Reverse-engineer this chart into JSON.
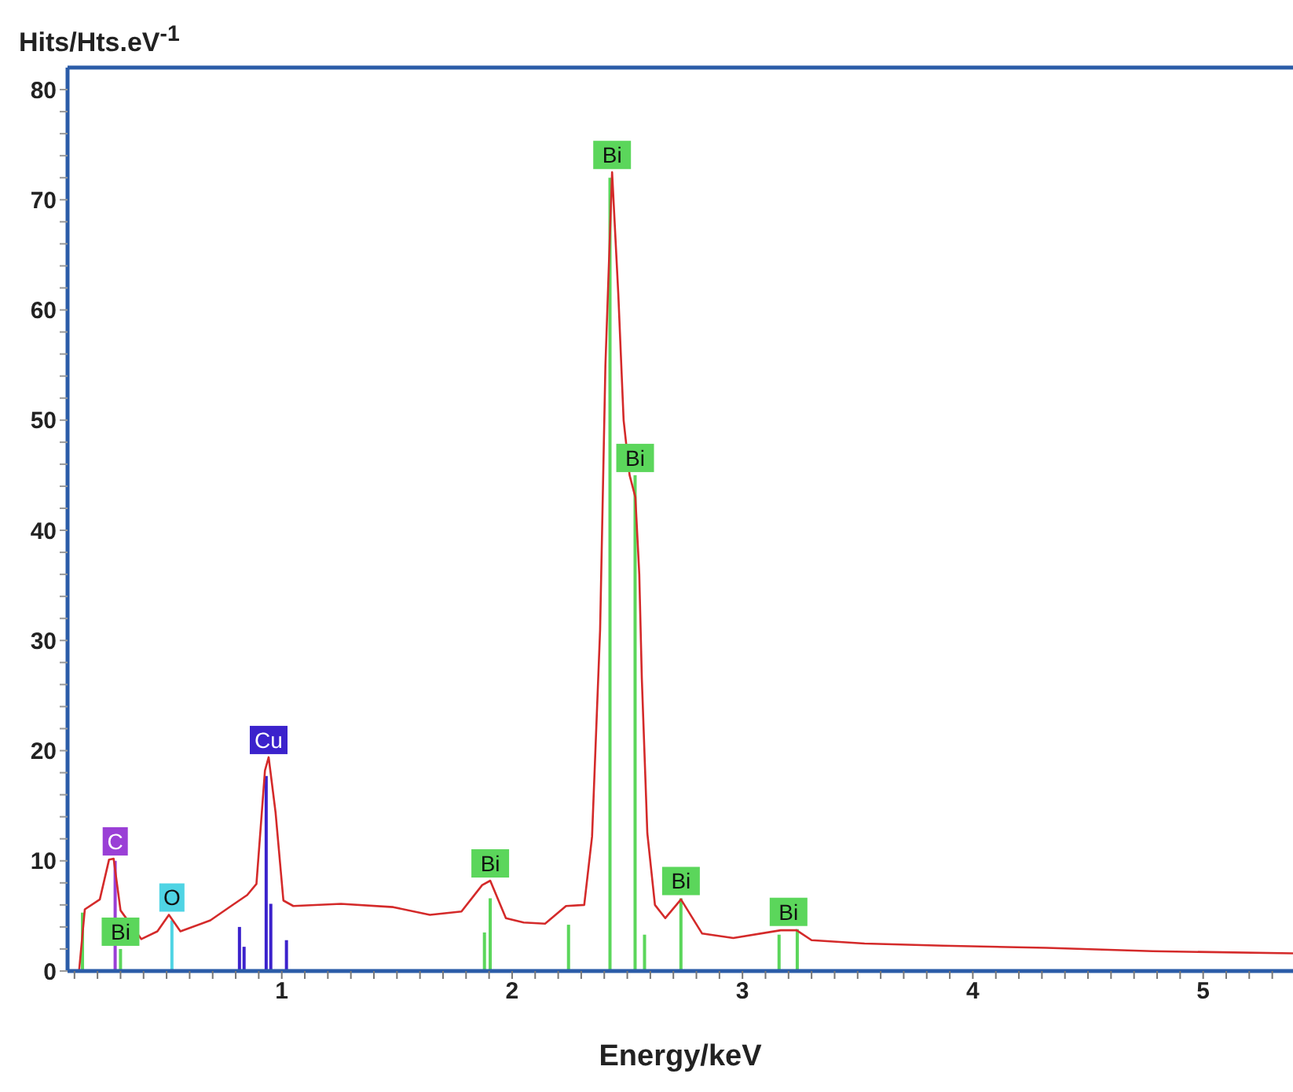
{
  "chart_data": {
    "type": "line",
    "xlabel": "Energy/keV",
    "ylabel": "Hits/Hts.eV$^{-1}$",
    "xlim": [
      0.07,
      5.39
    ],
    "ylim": [
      0,
      82
    ],
    "xticks": [
      {
        "value": 0.1,
        "label": null
      },
      {
        "value": 0.2,
        "label": null
      },
      {
        "value": 0.3,
        "label": null
      },
      {
        "value": 0.4,
        "label": null
      },
      {
        "value": 0.5,
        "label": null
      },
      {
        "value": 0.6,
        "label": null
      },
      {
        "value": 0.7,
        "label": null
      },
      {
        "value": 0.8,
        "label": null
      },
      {
        "value": 0.9,
        "label": null
      },
      1,
      {
        "value": 1.1,
        "label": null
      },
      {
        "value": 1.2,
        "label": null
      },
      {
        "value": 1.3,
        "label": null
      },
      {
        "value": 1.4,
        "label": null
      },
      {
        "value": 1.5,
        "label": null
      },
      {
        "value": 1.6,
        "label": null
      },
      {
        "value": 1.7,
        "label": null
      },
      {
        "value": 1.8,
        "label": null
      },
      {
        "value": 1.9,
        "label": null
      },
      2,
      {
        "value": 2.1,
        "label": null
      },
      {
        "value": 2.2,
        "label": null
      },
      {
        "value": 2.3,
        "label": null
      },
      {
        "value": 2.4,
        "label": null
      },
      {
        "value": 2.5,
        "label": null
      },
      {
        "value": 2.6,
        "label": null
      },
      {
        "value": 2.7,
        "label": null
      },
      {
        "value": 2.8,
        "label": null
      },
      {
        "value": 2.9,
        "label": null
      },
      3,
      {
        "value": 3.1,
        "label": null
      },
      {
        "value": 3.2,
        "label": null
      },
      {
        "value": 3.3,
        "label": null
      },
      {
        "value": 3.4,
        "label": null
      },
      {
        "value": 3.5,
        "label": null
      },
      {
        "value": 3.6,
        "label": null
      },
      {
        "value": 3.7,
        "label": null
      },
      {
        "value": 3.8,
        "label": null
      },
      {
        "value": 3.9,
        "label": null
      },
      4,
      {
        "value": 4.1,
        "label": null
      },
      {
        "value": 4.2,
        "label": null
      },
      {
        "value": 4.3,
        "label": null
      },
      {
        "value": 4.4,
        "label": null
      },
      {
        "value": 4.5,
        "label": null
      },
      {
        "value": 4.6,
        "label": null
      },
      {
        "value": 4.7,
        "label": null
      },
      {
        "value": 4.8,
        "label": null
      },
      {
        "value": 4.9,
        "label": null
      },
      5,
      {
        "value": 5.1,
        "label": null
      },
      {
        "value": 5.2,
        "label": null
      },
      {
        "value": 5.3,
        "label": null
      }
    ],
    "yticks": [
      0,
      {
        "value": 2,
        "label": null
      },
      {
        "value": 4,
        "label": null
      },
      {
        "value": 6,
        "label": null
      },
      {
        "value": 8,
        "label": null
      },
      10,
      {
        "value": 12,
        "label": null
      },
      {
        "value": 14,
        "label": null
      },
      {
        "value": 16,
        "label": null
      },
      {
        "value": 18,
        "label": null
      },
      20,
      {
        "value": 22,
        "label": null
      },
      {
        "value": 24,
        "label": null
      },
      {
        "value": 26,
        "label": null
      },
      {
        "value": 28,
        "label": null
      },
      30,
      {
        "value": 32,
        "label": null
      },
      {
        "value": 34,
        "label": null
      },
      {
        "value": 36,
        "label": null
      },
      {
        "value": 38,
        "label": null
      },
      40,
      {
        "value": 42,
        "label": null
      },
      {
        "value": 44,
        "label": null
      },
      {
        "value": 46,
        "label": null
      },
      {
        "value": 48,
        "label": null
      },
      50,
      {
        "value": 52,
        "label": null
      },
      {
        "value": 54,
        "label": null
      },
      {
        "value": 56,
        "label": null
      },
      {
        "value": 58,
        "label": null
      },
      60,
      {
        "value": 62,
        "label": null
      },
      {
        "value": 64,
        "label": null
      },
      {
        "value": 66,
        "label": null
      },
      {
        "value": 68,
        "label": null
      },
      70,
      {
        "value": 72,
        "label": null
      },
      {
        "value": 74,
        "label": null
      },
      {
        "value": 76,
        "label": null
      },
      {
        "value": 78,
        "label": null
      },
      80
    ],
    "series": [
      {
        "color": "#d42a2a",
        "x": [
          0.12,
          0.145,
          0.21,
          0.25,
          0.27,
          0.3,
          0.39,
          0.46,
          0.51,
          0.56,
          0.69,
          0.78,
          0.85,
          0.89,
          0.927,
          0.943,
          0.973,
          1.007,
          1.05,
          1.257,
          1.484,
          1.643,
          1.78,
          1.87,
          1.905,
          1.973,
          2.05,
          2.143,
          2.234,
          2.313,
          2.347,
          2.382,
          2.405,
          2.434,
          2.461,
          2.484,
          2.51,
          2.535,
          2.552,
          2.563,
          2.587,
          2.62,
          2.665,
          2.733,
          2.825,
          2.96,
          3.166,
          3.235,
          3.3,
          3.53,
          3.87,
          4.32,
          4.78,
          5.39
        ],
        "values": [
          0,
          5.6,
          6.5,
          10.1,
          10.2,
          5.5,
          2.9,
          3.6,
          5.1,
          3.6,
          4.6,
          5.9,
          6.9,
          7.9,
          18.2,
          19.4,
          14.4,
          6.4,
          5.9,
          6.1,
          5.8,
          5.1,
          5.4,
          7.8,
          8.2,
          4.8,
          4.4,
          4.3,
          5.9,
          6,
          12.2,
          31,
          55,
          72.5,
          61.4,
          50,
          45,
          43,
          36,
          26.6,
          12.5,
          6,
          4.8,
          6.5,
          3.4,
          3,
          3.7,
          3.7,
          2.8,
          2.5,
          2.3,
          2.1,
          1.8,
          1.6
        ]
      },
      {
        "type": "bar",
        "color": "#9a3fd6",
        "x": [
          0.277
        ],
        "values": [
          10
        ]
      },
      {
        "type": "bar",
        "color": "#5bd65b",
        "x": [
          0.135,
          0.3,
          1.88,
          1.905,
          2.245,
          2.425,
          2.534,
          2.575,
          2.733,
          3.159,
          3.238
        ],
        "values": [
          5.3,
          2,
          3.5,
          6.6,
          4.2,
          72,
          45,
          3.3,
          6.6,
          3.3,
          3.8
        ]
      },
      {
        "type": "bar",
        "color": "#4fd4e4",
        "x": [
          0.523
        ],
        "values": [
          4.6
        ]
      },
      {
        "type": "bar",
        "color": "#3b22cc",
        "x": [
          0.816,
          0.836,
          0.932,
          0.952,
          1.02
        ],
        "values": [
          4,
          2.2,
          17.7,
          6.1,
          2.8
        ]
      }
    ],
    "annotations": [
      {
        "text": "C",
        "x": 0.277,
        "y": 10.2
      },
      {
        "text": "Bi",
        "x": 0.3,
        "y": 2
      },
      {
        "text": "O",
        "x": 0.523,
        "y": 5.1
      },
      {
        "text": "Cu",
        "x": 0.943,
        "y": 19.4
      },
      {
        "text": "Bi",
        "x": 1.905,
        "y": 8.2
      },
      {
        "text": "Bi",
        "x": 2.434,
        "y": 72.5
      },
      {
        "text": "Bi",
        "x": 2.534,
        "y": 45
      },
      {
        "text": "Bi",
        "x": 2.733,
        "y": 6.6
      },
      {
        "text": "Bi",
        "x": 3.2,
        "y": 3.8
      }
    ]
  }
}
